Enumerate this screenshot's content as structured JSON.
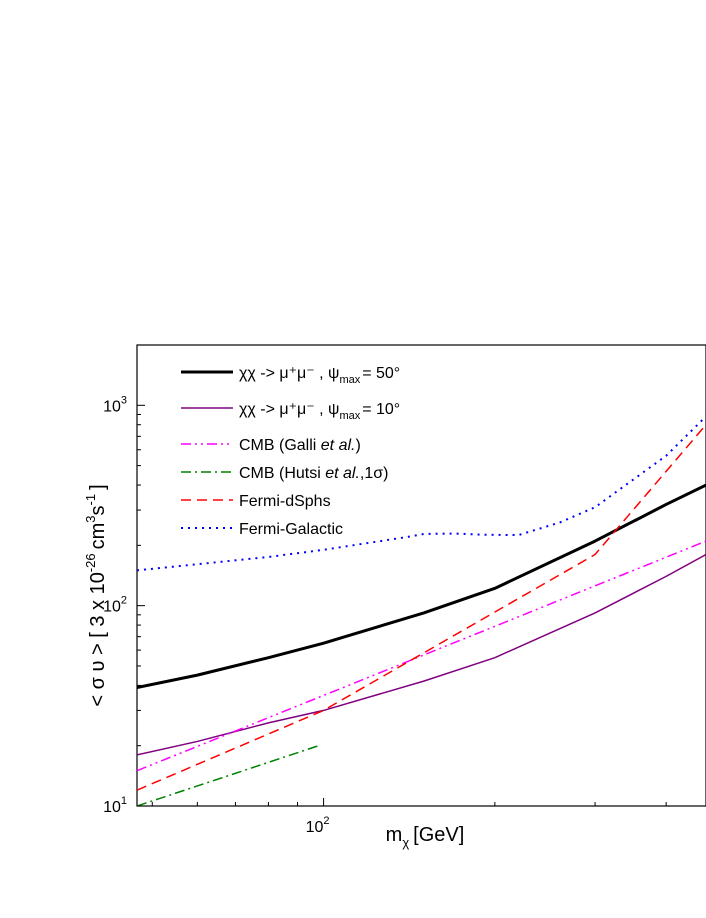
{
  "chart_data": {
    "type": "line",
    "title": "",
    "xlabel": "m_χ [GeV]",
    "ylabel": "< σ υ > [ 3 x 10^-26 cm^3 s^-1 ]",
    "x_scale": "log",
    "y_scale": "log",
    "xlim": [
      47,
      470
    ],
    "ylim": [
      10,
      2000
    ],
    "grid": false,
    "legend_position": "top-left",
    "x_ticks": [
      {
        "value": 100,
        "label": "10",
        "exponent": "2"
      }
    ],
    "y_ticks": [
      {
        "value": 10,
        "label": "10",
        "exponent": "1"
      },
      {
        "value": 100,
        "label": "10",
        "exponent": "2"
      },
      {
        "value": 1000,
        "label": "10",
        "exponent": "3"
      }
    ],
    "series": [
      {
        "name": "χχ -> μ⁺μ⁻ , ψmax = 50°",
        "legend_text": "χχ -> μ⁺μ⁻ , ψ",
        "legend_sub": "max",
        "legend_suffix": "= 50°",
        "color": "#000000",
        "style": "solid",
        "width": 3,
        "x": [
          47,
          60,
          80,
          100,
          150,
          200,
          300,
          400,
          470
        ],
        "y": [
          39,
          45,
          55,
          65,
          92,
          122,
          210,
          320,
          400
        ]
      },
      {
        "name": "χχ -> μ⁺μ⁻ , ψmax = 10°",
        "legend_text": "χχ -> μ⁺μ⁻ , ψ",
        "legend_sub": "max",
        "legend_suffix": "= 10°",
        "color": "#800080",
        "style": "solid",
        "width": 1.5,
        "x": [
          47,
          60,
          80,
          100,
          150,
          200,
          300,
          400,
          470
        ],
        "y": [
          18,
          21,
          26,
          30,
          42,
          55,
          92,
          140,
          180
        ]
      },
      {
        "name": "CMB (Galli et al.)",
        "legend_text": "CMB (Galli ",
        "legend_italic": "et al.",
        "legend_suffix": ")",
        "color": "#ff00ff",
        "style": "dashdotdot",
        "width": 1.5,
        "x": [
          47,
          470
        ],
        "y": [
          15,
          210
        ]
      },
      {
        "name": "CMB (Hutsi et al., 1σ)",
        "legend_text": "CMB (Hutsi ",
        "legend_italic": "et al.",
        "legend_suffix": ",1σ)",
        "color": "#008000",
        "style": "dashdot",
        "width": 1.5,
        "x": [
          47,
          98
        ],
        "y": [
          10,
          20
        ]
      },
      {
        "name": "Fermi-dSphs",
        "legend_text": "Fermi-dSphs",
        "color": "#ff0000",
        "style": "dashed",
        "width": 1.5,
        "x": [
          47,
          100,
          300,
          470
        ],
        "y": [
          12,
          30,
          180,
          800
        ]
      },
      {
        "name": "Fermi-Galactic",
        "legend_text": "Fermi-Galactic",
        "color": "#0000ff",
        "style": "dotted",
        "width": 2,
        "x": [
          47,
          80,
          100,
          140,
          150,
          170,
          190,
          220,
          260,
          300,
          400,
          470
        ],
        "y": [
          150,
          175,
          190,
          220,
          228,
          229,
          226,
          225,
          260,
          310,
          560,
          880
        ]
      }
    ]
  }
}
